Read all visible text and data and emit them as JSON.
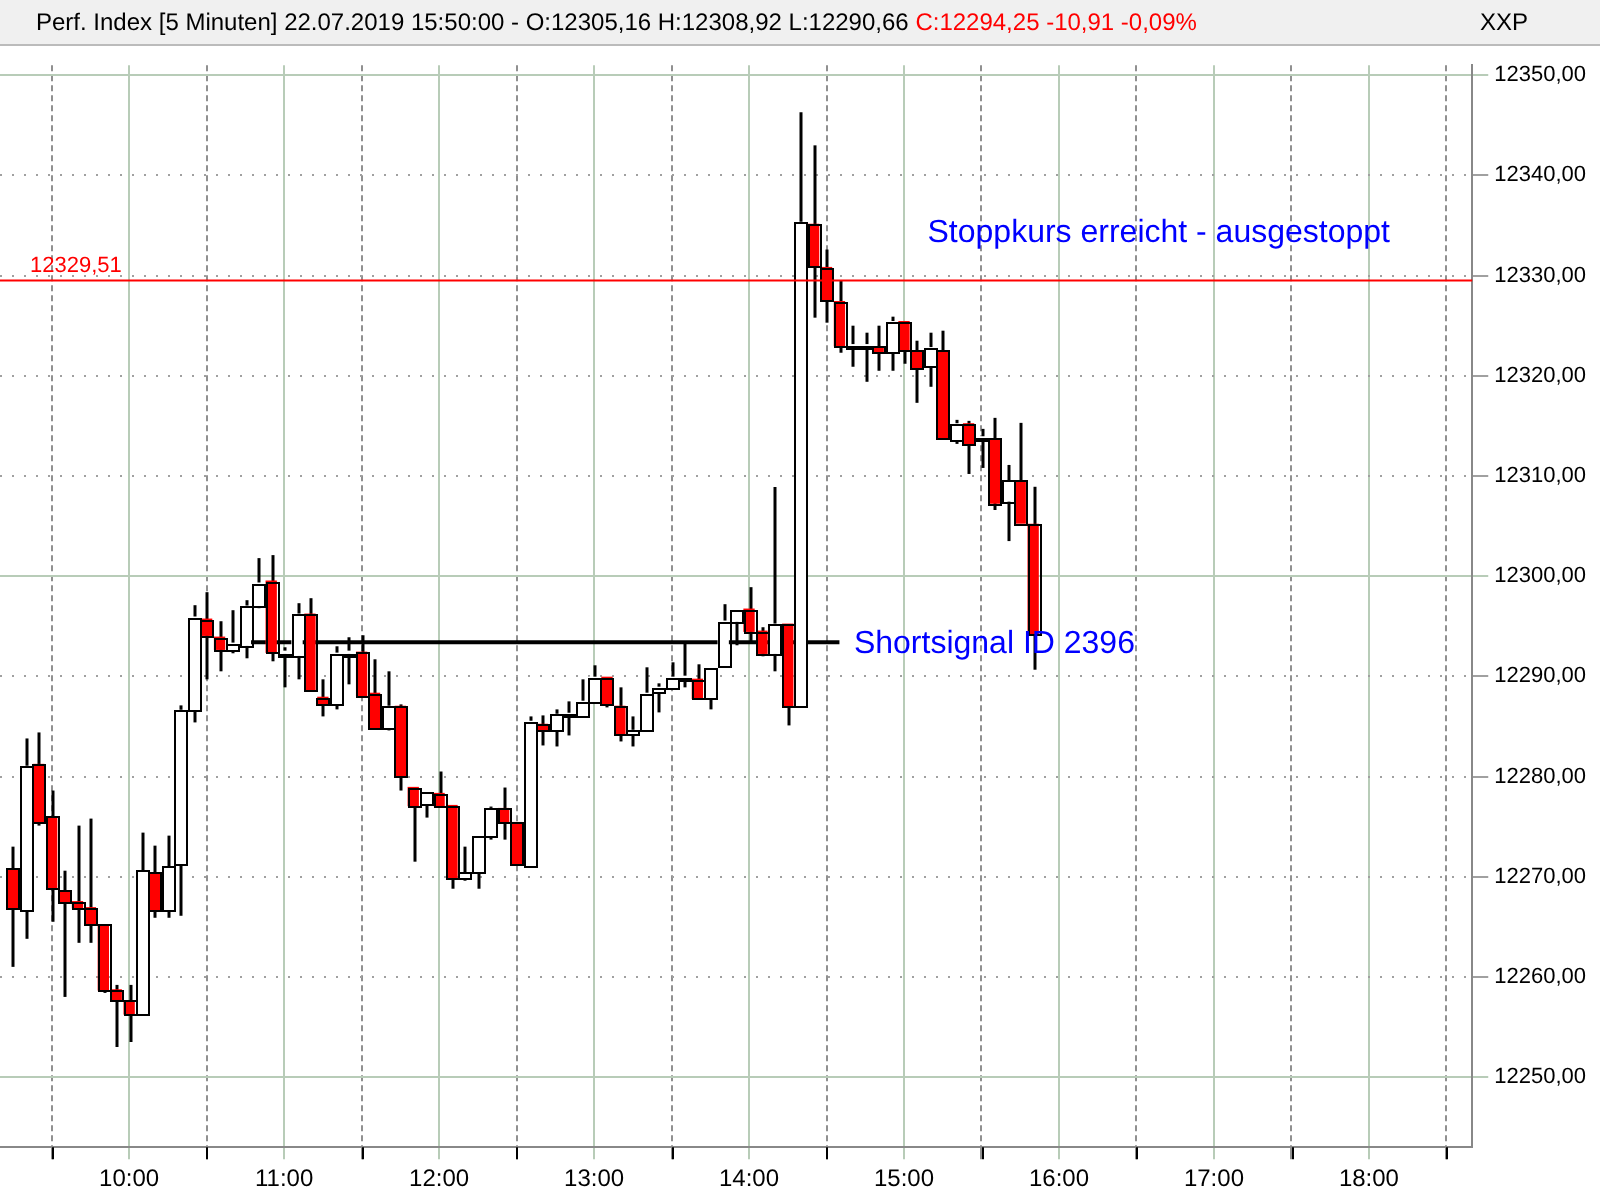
{
  "chart_data": {
    "type": "candlestick",
    "title": "Perf. Index [5 Minuten] 22.07.2019 15:50:00 - O:12305,16 H:12308,92 L:12290,66",
    "subtitle": "C:12294,25 -10,91 -0,09%",
    "annotations": [
      "XXP",
      "Stoppkurs erreicht - ausgestoppt",
      "Shortsignal ID 2396"
    ],
    "grid": true,
    "legend": false,
    "xlim": [
      "2019-07-22T09:10",
      "2019-07-22T18:40"
    ],
    "xticks": [
      {
        "value": "2019-07-22T09:30",
        "label": null
      },
      {
        "value": "2019-07-22T10:00",
        "label": "10:00"
      },
      {
        "value": "2019-07-22T10:30",
        "label": null
      },
      {
        "value": "2019-07-22T11:00",
        "label": "11:00"
      },
      {
        "value": "2019-07-22T11:30",
        "label": null
      },
      {
        "value": "2019-07-22T12:00",
        "label": "12:00"
      },
      {
        "value": "2019-07-22T12:30",
        "label": null
      },
      {
        "value": "2019-07-22T13:00",
        "label": "13:00"
      },
      {
        "value": "2019-07-22T13:30",
        "label": null
      },
      {
        "value": "2019-07-22T14:00",
        "label": "14:00"
      },
      {
        "value": "2019-07-22T14:30",
        "label": null
      },
      {
        "value": "2019-07-22T15:00",
        "label": "15:00"
      },
      {
        "value": "2019-07-22T15:30",
        "label": null
      },
      {
        "value": "2019-07-22T16:00",
        "label": "16:00"
      },
      {
        "value": "2019-07-22T16:30",
        "label": null
      },
      {
        "value": "2019-07-22T17:00",
        "label": "17:00"
      },
      {
        "value": "2019-07-22T17:30",
        "label": null
      },
      {
        "value": "2019-07-22T18:00",
        "label": "18:00"
      },
      {
        "value": "2019-07-22T18:30",
        "label": null
      }
    ],
    "ylim": [
      12243,
      12351
    ],
    "yticks": [
      {
        "value": 12250,
        "label": "12250,00"
      },
      {
        "value": 12260,
        "label": "12260,00"
      },
      {
        "value": 12270,
        "label": "12270,00"
      },
      {
        "value": 12280,
        "label": "12280,00"
      },
      {
        "value": 12290,
        "label": "12290,00"
      },
      {
        "value": 12300,
        "label": "12300,00"
      },
      {
        "value": 12310,
        "label": "12310,00"
      },
      {
        "value": 12320,
        "label": "12320,00"
      },
      {
        "value": 12330,
        "label": "12330,00"
      },
      {
        "value": 12340,
        "label": "12340,00"
      },
      {
        "value": 12350,
        "label": "12350,00"
      }
    ],
    "ref_lines": [
      {
        "axis": "y",
        "value": 12329.51,
        "label": "12329,51",
        "color": "#ff0000"
      }
    ],
    "series": [
      {
        "color": "#ffffff",
        "x": [
          "2019-07-22T09:20",
          "2019-07-22T10:05",
          "2019-07-22T10:15",
          "2019-07-22T10:20",
          "2019-07-22T10:25",
          "2019-07-22T10:40",
          "2019-07-22T10:45",
          "2019-07-22T10:50",
          "2019-07-22T11:00",
          "2019-07-22T11:05",
          "2019-07-22T11:20",
          "2019-07-22T11:25",
          "2019-07-22T11:40",
          "2019-07-22T11:55",
          "2019-07-22T12:10",
          "2019-07-22T12:15",
          "2019-07-22T12:20",
          "2019-07-22T12:35",
          "2019-07-22T12:45",
          "2019-07-22T12:50",
          "2019-07-22T12:55",
          "2019-07-22T13:00",
          "2019-07-22T13:15",
          "2019-07-22T13:20",
          "2019-07-22T13:25",
          "2019-07-22T13:30",
          "2019-07-22T13:35",
          "2019-07-22T13:45",
          "2019-07-22T13:50",
          "2019-07-22T13:55",
          "2019-07-22T14:10",
          "2019-07-22T14:20",
          "2019-07-22T14:40",
          "2019-07-22T14:45",
          "2019-07-22T14:55",
          "2019-07-22T15:10",
          "2019-07-22T15:20",
          "2019-07-22T15:30",
          "2019-07-22T15:40"
        ],
        "ohlc": [
          [
            12266.7,
            12283.8,
            12263.8,
            12281.0
          ],
          [
            12256.3,
            12274.4,
            12256.1,
            12270.6
          ],
          [
            12266.7,
            12274.1,
            12265.9,
            12271.0
          ],
          [
            12271.2,
            12287.1,
            12266.1,
            12286.6
          ],
          [
            12286.6,
            12297.1,
            12285.4,
            12295.9
          ],
          [
            12292.6,
            12296.6,
            12292.3,
            12293.3
          ],
          [
            12293.1,
            12297.6,
            12291.8,
            12297.0
          ],
          [
            12297.0,
            12301.8,
            12296.8,
            12299.3
          ],
          [
            12292.3,
            12292.9,
            12288.9,
            12292.3
          ],
          [
            12292.1,
            12297.3,
            12289.7,
            12296.2
          ],
          [
            12287.3,
            12293.0,
            12286.7,
            12292.3
          ],
          [
            12292.3,
            12293.9,
            12289.2,
            12292.3
          ],
          [
            12284.9,
            12290.5,
            12284.6,
            12287.0
          ],
          [
            12277.3,
            12278.5,
            12275.9,
            12278.5
          ],
          [
            12269.8,
            12273.0,
            12269.6,
            12270.4
          ],
          [
            12270.4,
            12274.0,
            12268.8,
            12274.0
          ],
          [
            12274.0,
            12277.0,
            12273.7,
            12276.8
          ],
          [
            12271.1,
            12286.0,
            12270.9,
            12285.5
          ],
          [
            12284.7,
            12286.7,
            12283.0,
            12286.2
          ],
          [
            12286.1,
            12287.5,
            12284.1,
            12286.2
          ],
          [
            12286.0,
            12289.7,
            12285.9,
            12287.5
          ],
          [
            12287.5,
            12291.1,
            12287.3,
            12289.9
          ],
          [
            12284.3,
            12286.0,
            12283.0,
            12284.6
          ],
          [
            12284.6,
            12290.9,
            12284.6,
            12288.3
          ],
          [
            12288.4,
            12289.3,
            12286.4,
            12288.9
          ],
          [
            12288.9,
            12291.4,
            12288.8,
            12289.9
          ],
          [
            12289.8,
            12293.4,
            12288.9,
            12289.8
          ],
          [
            12287.8,
            12290.9,
            12286.7,
            12290.9
          ],
          [
            12291.1,
            12297.2,
            12291.1,
            12295.5
          ],
          [
            12295.5,
            12296.7,
            12293.1,
            12296.7
          ],
          [
            12292.3,
            12308.9,
            12290.5,
            12295.2
          ],
          [
            12287.0,
            12346.3,
            12287.0,
            12335.3
          ],
          [
            12322.9,
            12325.0,
            12320.9,
            12322.9
          ],
          [
            12322.9,
            12324.3,
            12319.4,
            12322.9
          ],
          [
            12322.4,
            12325.9,
            12320.5,
            12325.4
          ],
          [
            12320.9,
            12324.3,
            12318.9,
            12322.8
          ],
          [
            12313.5,
            12315.6,
            12313.2,
            12315.2
          ],
          [
            12313.7,
            12314.7,
            12310.8,
            12313.7
          ],
          [
            12307.5,
            12311.1,
            12303.5,
            12309.5
          ]
        ]
      },
      {
        "color": "#ff0000",
        "x": [
          "2019-07-22T09:15",
          "2019-07-22T09:25",
          "2019-07-22T09:30",
          "2019-07-22T09:35",
          "2019-07-22T09:40",
          "2019-07-22T09:45",
          "2019-07-22T09:50",
          "2019-07-22T09:55",
          "2019-07-22T10:00",
          "2019-07-22T10:10",
          "2019-07-22T10:30",
          "2019-07-22T10:35",
          "2019-07-22T10:55",
          "2019-07-22T11:10",
          "2019-07-22T11:15",
          "2019-07-22T11:30",
          "2019-07-22T11:35",
          "2019-07-22T11:45",
          "2019-07-22T11:50",
          "2019-07-22T12:00",
          "2019-07-22T12:05",
          "2019-07-22T12:25",
          "2019-07-22T12:30",
          "2019-07-22T12:40",
          "2019-07-22T13:05",
          "2019-07-22T13:10",
          "2019-07-22T13:40",
          "2019-07-22T14:00",
          "2019-07-22T14:05",
          "2019-07-22T14:15",
          "2019-07-22T14:25",
          "2019-07-22T14:30",
          "2019-07-22T14:35",
          "2019-07-22T14:50",
          "2019-07-22T15:00",
          "2019-07-22T15:05",
          "2019-07-22T15:15",
          "2019-07-22T15:25",
          "2019-07-22T15:35",
          "2019-07-22T15:45",
          "2019-07-22T15:50"
        ],
        "ohlc": [
          [
            12270.8,
            12273.0,
            12261.0,
            12266.9
          ],
          [
            12281.2,
            12284.4,
            12275.1,
            12275.4
          ],
          [
            12276.0,
            12278.6,
            12265.5,
            12268.8
          ],
          [
            12268.6,
            12270.6,
            12258.0,
            12267.5
          ],
          [
            12267.5,
            12275.1,
            12263.4,
            12266.9
          ],
          [
            12266.9,
            12275.8,
            12263.4,
            12265.2
          ],
          [
            12265.2,
            12265.2,
            12258.4,
            12258.7
          ],
          [
            12258.7,
            12259.2,
            12253.0,
            12257.6
          ],
          [
            12257.6,
            12259.2,
            12253.5,
            12256.3
          ],
          [
            12270.4,
            12273.1,
            12265.9,
            12266.7
          ],
          [
            12295.7,
            12298.4,
            12289.7,
            12294.1
          ],
          [
            12293.9,
            12295.5,
            12290.5,
            12292.7
          ],
          [
            12299.5,
            12302.1,
            12291.5,
            12292.4
          ],
          [
            12296.2,
            12297.8,
            12288.7,
            12288.7
          ],
          [
            12287.9,
            12289.7,
            12286.0,
            12287.3
          ],
          [
            12292.4,
            12294.1,
            12288.0,
            12288.1
          ],
          [
            12288.3,
            12291.7,
            12284.9,
            12284.9
          ],
          [
            12287.0,
            12287.2,
            12278.6,
            12280.0
          ],
          [
            12278.9,
            12278.9,
            12271.5,
            12277.1
          ],
          [
            12278.3,
            12280.5,
            12277.1,
            12277.1
          ],
          [
            12277.1,
            12277.1,
            12268.8,
            12269.8
          ],
          [
            12276.8,
            12278.9,
            12273.7,
            12275.4
          ],
          [
            12275.4,
            12275.4,
            12271.3,
            12271.3
          ],
          [
            12285.2,
            12286.1,
            12283.1,
            12284.6
          ],
          [
            12289.9,
            12289.9,
            12286.9,
            12287.2
          ],
          [
            12287.0,
            12288.9,
            12283.5,
            12284.3
          ],
          [
            12289.7,
            12291.2,
            12287.8,
            12287.8
          ],
          [
            12296.7,
            12298.9,
            12293.4,
            12294.5
          ],
          [
            12294.5,
            12294.9,
            12292.0,
            12292.3
          ],
          [
            12295.2,
            12295.2,
            12285.1,
            12287.0
          ],
          [
            12335.1,
            12343.0,
            12325.8,
            12330.9
          ],
          [
            12330.8,
            12332.6,
            12325.3,
            12327.5
          ],
          [
            12327.4,
            12329.5,
            12322.3,
            12323.0
          ],
          [
            12322.9,
            12325.0,
            12320.5,
            12322.4
          ],
          [
            12325.4,
            12325.4,
            12321.2,
            12322.5
          ],
          [
            12322.5,
            12323.5,
            12317.3,
            12320.8
          ],
          [
            12322.5,
            12324.5,
            12313.8,
            12313.8
          ],
          [
            12315.2,
            12315.5,
            12310.2,
            12313.1
          ],
          [
            12313.7,
            12315.8,
            12306.6,
            12307.3
          ],
          [
            12309.5,
            12315.3,
            12305.3,
            12305.3
          ],
          [
            12305.16,
            12308.92,
            12290.66,
            12294.25
          ]
        ]
      },
      {
        "type": "line",
        "color": "#000000",
        "x": [
          "2019-07-22T10:43",
          "2019-07-22T14:35"
        ],
        "values": [
          12293.4,
          12293.4
        ]
      }
    ]
  }
}
